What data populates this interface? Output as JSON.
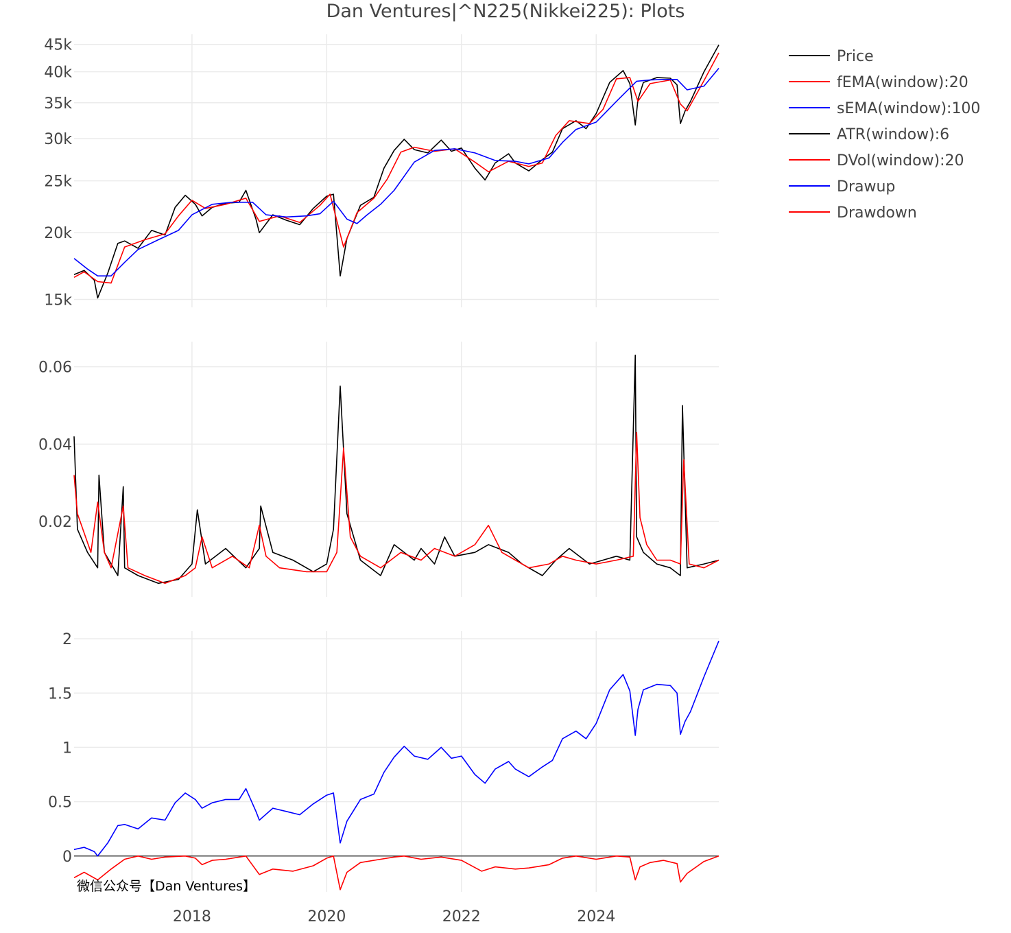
{
  "title": "Dan Ventures|^N225(Nikkei225): Plots",
  "watermark": "微信公众号【Dan Ventures】",
  "colors": {
    "black": "#000000",
    "red": "#ff0000",
    "blue": "#0000ff",
    "grid": "#ebebeb",
    "text": "#444444"
  },
  "legend": [
    {
      "name": "Price",
      "color": "#000000"
    },
    {
      "name": "fEMA(window):20",
      "color": "#ff0000"
    },
    {
      "name": "sEMA(window):100",
      "color": "#0000ff"
    },
    {
      "name": "ATR(window):6",
      "color": "#000000"
    },
    {
      "name": "DVol(window):20",
      "color": "#ff0000"
    },
    {
      "name": "Drawup",
      "color": "#0000ff"
    },
    {
      "name": "Drawdown",
      "color": "#ff0000"
    }
  ],
  "chart_data": [
    {
      "type": "line",
      "panel": "price",
      "yscale": "log",
      "ylim": [
        14500,
        47000
      ],
      "xlim": [
        2016.25,
        2025.82
      ],
      "x_ticks": [
        "2018",
        "2020",
        "2022",
        "2024"
      ],
      "y_ticks": [
        {
          "value": 15000,
          "label": "15k"
        },
        {
          "value": 20000,
          "label": "20k"
        },
        {
          "value": 25000,
          "label": "25k"
        },
        {
          "value": 30000,
          "label": "30k"
        },
        {
          "value": 35000,
          "label": "35k"
        },
        {
          "value": 40000,
          "label": "40k"
        },
        {
          "value": 45000,
          "label": "45k"
        }
      ],
      "grid": true,
      "series": [
        {
          "name": "Price",
          "color": "#000000",
          "x": [
            2016.25,
            2016.4,
            2016.55,
            2016.6,
            2016.75,
            2016.9,
            2017.0,
            2017.2,
            2017.4,
            2017.6,
            2017.75,
            2017.9,
            2018.05,
            2018.15,
            2018.3,
            2018.5,
            2018.7,
            2018.8,
            2018.95,
            2019.0,
            2019.2,
            2019.4,
            2019.6,
            2019.8,
            2020.0,
            2020.1,
            2020.2,
            2020.3,
            2020.5,
            2020.7,
            2020.85,
            2021.0,
            2021.15,
            2021.3,
            2021.5,
            2021.7,
            2021.85,
            2022.0,
            2022.2,
            2022.35,
            2022.5,
            2022.7,
            2022.8,
            2023.0,
            2023.2,
            2023.35,
            2023.5,
            2023.7,
            2023.85,
            2024.0,
            2024.2,
            2024.4,
            2024.5,
            2024.58,
            2024.62,
            2024.7,
            2024.9,
            2025.1,
            2025.2,
            2025.25,
            2025.32,
            2025.4,
            2025.6,
            2025.82
          ],
          "y": [
            16700,
            17000,
            16300,
            15100,
            16800,
            19100,
            19300,
            18700,
            20200,
            19800,
            22300,
            23500,
            22600,
            21500,
            22300,
            22700,
            22800,
            24000,
            21200,
            20000,
            21600,
            21100,
            20700,
            22200,
            23400,
            23600,
            16600,
            19500,
            22500,
            23300,
            26400,
            28500,
            29900,
            28600,
            28200,
            29800,
            28400,
            28800,
            26400,
            25100,
            27000,
            28100,
            27000,
            26100,
            27400,
            28300,
            31300,
            32400,
            31300,
            33400,
            38200,
            40200,
            38000,
            31800,
            35500,
            38200,
            39000,
            38900,
            37800,
            32000,
            33800,
            35200,
            40000,
            44900
          ]
        },
        {
          "name": "fEMA(window):20",
          "color": "#ff0000",
          "x": [
            2016.25,
            2016.4,
            2016.6,
            2016.8,
            2017.0,
            2017.3,
            2017.6,
            2017.8,
            2018.0,
            2018.2,
            2018.5,
            2018.8,
            2019.0,
            2019.3,
            2019.6,
            2019.9,
            2020.05,
            2020.25,
            2020.45,
            2020.7,
            2020.9,
            2021.1,
            2021.3,
            2021.6,
            2021.9,
            2022.2,
            2022.4,
            2022.7,
            2023.0,
            2023.2,
            2023.4,
            2023.6,
            2023.9,
            2024.1,
            2024.3,
            2024.5,
            2024.62,
            2024.8,
            2025.1,
            2025.25,
            2025.35,
            2025.6,
            2025.82
          ],
          "y": [
            16500,
            16900,
            16200,
            16100,
            18800,
            19400,
            19900,
            21500,
            23000,
            22200,
            22600,
            23200,
            21000,
            21500,
            20900,
            22500,
            23600,
            18800,
            21800,
            23200,
            25200,
            28300,
            28900,
            28400,
            28700,
            27100,
            26000,
            27200,
            26600,
            27000,
            30400,
            32400,
            32000,
            34000,
            38800,
            39000,
            35200,
            38000,
            38600,
            34800,
            33800,
            38500,
            43400
          ]
        },
        {
          "name": "sEMA(window):100",
          "color": "#0000ff",
          "x": [
            2016.25,
            2016.45,
            2016.6,
            2016.8,
            2017.0,
            2017.2,
            2017.5,
            2017.8,
            2018.0,
            2018.3,
            2018.6,
            2018.9,
            2019.1,
            2019.4,
            2019.7,
            2019.9,
            2020.1,
            2020.3,
            2020.45,
            2020.6,
            2020.8,
            2021.0,
            2021.3,
            2021.6,
            2021.9,
            2022.2,
            2022.5,
            2022.8,
            2023.0,
            2023.3,
            2023.5,
            2023.7,
            2024.0,
            2024.3,
            2024.6,
            2024.8,
            2025.0,
            2025.2,
            2025.35,
            2025.6,
            2025.82
          ],
          "y": [
            17900,
            17100,
            16600,
            16600,
            17600,
            18600,
            19400,
            20200,
            21600,
            22600,
            22800,
            22800,
            21600,
            21400,
            21500,
            21700,
            22900,
            21200,
            20800,
            21600,
            22600,
            24000,
            27100,
            28500,
            28700,
            28200,
            27300,
            27200,
            26900,
            27600,
            29500,
            31200,
            32200,
            35200,
            38400,
            38600,
            38700,
            38700,
            37000,
            37600,
            40600
          ]
        }
      ]
    },
    {
      "type": "line",
      "panel": "volatility",
      "ylim": [
        0.0005,
        0.0665
      ],
      "xlim": [
        2016.25,
        2025.82
      ],
      "x_ticks": [
        "2018",
        "2020",
        "2022",
        "2024"
      ],
      "y_ticks": [
        {
          "value": 0.02,
          "label": "0.02"
        },
        {
          "value": 0.04,
          "label": "0.04"
        },
        {
          "value": 0.06,
          "label": "0.06"
        }
      ],
      "grid": true,
      "series": [
        {
          "name": "ATR(window):6",
          "color": "#000000",
          "x": [
            2016.25,
            2016.3,
            2016.45,
            2016.6,
            2016.62,
            2016.7,
            2016.9,
            2016.98,
            2017.0,
            2017.2,
            2017.5,
            2017.8,
            2018.0,
            2018.08,
            2018.2,
            2018.5,
            2018.8,
            2019.0,
            2019.02,
            2019.2,
            2019.5,
            2019.8,
            2020.0,
            2020.1,
            2020.2,
            2020.3,
            2020.5,
            2020.8,
            2021.0,
            2021.3,
            2021.4,
            2021.6,
            2021.75,
            2021.9,
            2022.2,
            2022.4,
            2022.7,
            2022.9,
            2023.2,
            2023.4,
            2023.6,
            2023.9,
            2024.1,
            2024.3,
            2024.5,
            2024.58,
            2024.6,
            2024.7,
            2024.9,
            2025.1,
            2025.25,
            2025.28,
            2025.35,
            2025.6,
            2025.82
          ],
          "y": [
            0.042,
            0.018,
            0.012,
            0.008,
            0.032,
            0.012,
            0.006,
            0.029,
            0.008,
            0.006,
            0.004,
            0.005,
            0.009,
            0.023,
            0.009,
            0.013,
            0.008,
            0.013,
            0.024,
            0.012,
            0.01,
            0.007,
            0.009,
            0.018,
            0.055,
            0.022,
            0.01,
            0.006,
            0.014,
            0.01,
            0.013,
            0.009,
            0.016,
            0.011,
            0.012,
            0.014,
            0.012,
            0.009,
            0.006,
            0.01,
            0.013,
            0.009,
            0.01,
            0.011,
            0.01,
            0.063,
            0.016,
            0.012,
            0.009,
            0.008,
            0.006,
            0.05,
            0.008,
            0.009,
            0.01
          ]
        },
        {
          "name": "DVol(window):20",
          "color": "#ff0000",
          "x": [
            2016.25,
            2016.3,
            2016.5,
            2016.6,
            2016.7,
            2016.8,
            2016.98,
            2017.05,
            2017.3,
            2017.6,
            2017.9,
            2018.05,
            2018.15,
            2018.3,
            2018.6,
            2018.85,
            2019.0,
            2019.1,
            2019.3,
            2019.7,
            2020.0,
            2020.15,
            2020.25,
            2020.35,
            2020.5,
            2020.8,
            2021.1,
            2021.4,
            2021.6,
            2021.9,
            2022.2,
            2022.4,
            2022.6,
            2022.8,
            2023.0,
            2023.3,
            2023.5,
            2023.7,
            2024.0,
            2024.3,
            2024.55,
            2024.6,
            2024.65,
            2024.75,
            2024.9,
            2025.1,
            2025.25,
            2025.3,
            2025.38,
            2025.6,
            2025.82
          ],
          "y": [
            0.032,
            0.022,
            0.012,
            0.025,
            0.012,
            0.008,
            0.024,
            0.008,
            0.006,
            0.004,
            0.006,
            0.008,
            0.016,
            0.008,
            0.011,
            0.008,
            0.019,
            0.011,
            0.008,
            0.007,
            0.007,
            0.012,
            0.039,
            0.016,
            0.011,
            0.008,
            0.012,
            0.01,
            0.013,
            0.011,
            0.014,
            0.019,
            0.012,
            0.01,
            0.008,
            0.009,
            0.011,
            0.01,
            0.009,
            0.01,
            0.011,
            0.043,
            0.021,
            0.014,
            0.01,
            0.01,
            0.009,
            0.036,
            0.009,
            0.008,
            0.01
          ]
        }
      ]
    },
    {
      "type": "line",
      "panel": "drawup-drawdown",
      "ylim": [
        -0.33,
        2.07
      ],
      "xlim": [
        2016.25,
        2025.82
      ],
      "x_ticks": [
        "2018",
        "2020",
        "2022",
        "2024"
      ],
      "y_ticks": [
        {
          "value": 0,
          "label": "0"
        },
        {
          "value": 0.5,
          "label": "0.5"
        },
        {
          "value": 1,
          "label": "1"
        },
        {
          "value": 1.5,
          "label": "1.5"
        },
        {
          "value": 2,
          "label": "2"
        }
      ],
      "grid": true,
      "series": [
        {
          "name": "Drawup",
          "color": "#0000ff",
          "x": [
            2016.25,
            2016.4,
            2016.55,
            2016.6,
            2016.75,
            2016.9,
            2017.0,
            2017.2,
            2017.4,
            2017.6,
            2017.75,
            2017.9,
            2018.05,
            2018.15,
            2018.3,
            2018.5,
            2018.7,
            2018.8,
            2018.95,
            2019.0,
            2019.2,
            2019.4,
            2019.6,
            2019.8,
            2020.0,
            2020.1,
            2020.2,
            2020.3,
            2020.5,
            2020.7,
            2020.85,
            2021.0,
            2021.15,
            2021.3,
            2021.5,
            2021.7,
            2021.85,
            2022.0,
            2022.2,
            2022.35,
            2022.5,
            2022.7,
            2022.8,
            2023.0,
            2023.2,
            2023.35,
            2023.5,
            2023.7,
            2023.85,
            2024.0,
            2024.2,
            2024.4,
            2024.5,
            2024.58,
            2024.62,
            2024.7,
            2024.9,
            2025.1,
            2025.2,
            2025.25,
            2025.32,
            2025.4,
            2025.6,
            2025.82
          ],
          "y": [
            0.06,
            0.08,
            0.04,
            0.0,
            0.12,
            0.28,
            0.29,
            0.25,
            0.35,
            0.33,
            0.49,
            0.58,
            0.52,
            0.44,
            0.49,
            0.52,
            0.52,
            0.62,
            0.41,
            0.33,
            0.44,
            0.41,
            0.38,
            0.48,
            0.56,
            0.58,
            0.12,
            0.32,
            0.52,
            0.57,
            0.77,
            0.91,
            1.01,
            0.92,
            0.89,
            1.0,
            0.9,
            0.92,
            0.75,
            0.67,
            0.8,
            0.87,
            0.8,
            0.73,
            0.82,
            0.88,
            1.08,
            1.15,
            1.08,
            1.22,
            1.53,
            1.67,
            1.52,
            1.11,
            1.35,
            1.53,
            1.58,
            1.57,
            1.5,
            1.12,
            1.24,
            1.33,
            1.65,
            1.98
          ]
        },
        {
          "name": "Drawdown",
          "color": "#ff0000",
          "x": [
            2016.25,
            2016.4,
            2016.6,
            2016.8,
            2017.0,
            2017.2,
            2017.4,
            2017.6,
            2017.9,
            2018.05,
            2018.15,
            2018.3,
            2018.5,
            2018.8,
            2019.0,
            2019.2,
            2019.5,
            2019.8,
            2020.0,
            2020.1,
            2020.2,
            2020.3,
            2020.5,
            2020.8,
            2021.0,
            2021.15,
            2021.4,
            2021.7,
            2022.0,
            2022.3,
            2022.5,
            2022.8,
            2023.0,
            2023.3,
            2023.5,
            2023.7,
            2024.0,
            2024.3,
            2024.5,
            2024.58,
            2024.65,
            2024.8,
            2025.0,
            2025.2,
            2025.25,
            2025.35,
            2025.6,
            2025.82
          ],
          "y": [
            -0.2,
            -0.15,
            -0.22,
            -0.12,
            -0.03,
            0.0,
            -0.03,
            -0.01,
            0.0,
            -0.02,
            -0.08,
            -0.04,
            -0.03,
            0.0,
            -0.17,
            -0.12,
            -0.14,
            -0.09,
            -0.02,
            0.0,
            -0.31,
            -0.15,
            -0.06,
            -0.03,
            -0.01,
            0.0,
            -0.03,
            -0.01,
            -0.04,
            -0.14,
            -0.1,
            -0.12,
            -0.11,
            -0.08,
            -0.02,
            0.0,
            -0.03,
            0.0,
            -0.01,
            -0.22,
            -0.1,
            -0.06,
            -0.04,
            -0.07,
            -0.24,
            -0.16,
            -0.05,
            0.0
          ]
        }
      ]
    }
  ]
}
